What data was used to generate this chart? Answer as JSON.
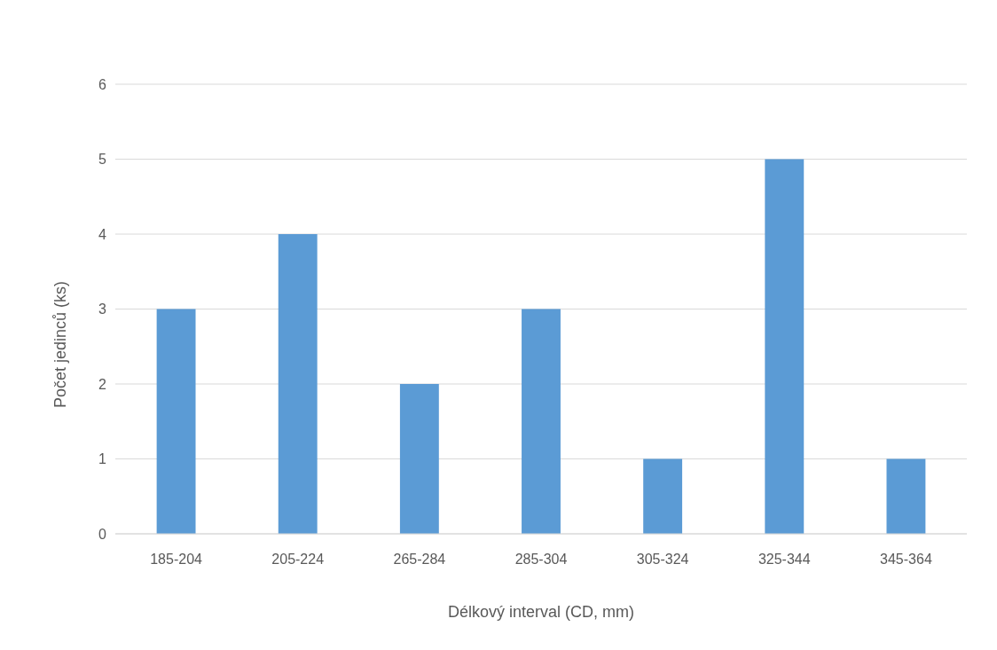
{
  "chart_data": {
    "type": "bar",
    "xlabel": "Délkový interval (CD, mm)",
    "ylabel": "Počet jedinců (ks)",
    "categories": [
      "185-204",
      "205-224",
      "265-284",
      "285-304",
      "305-324",
      "325-344",
      "345-364"
    ],
    "values": [
      3,
      4,
      2,
      3,
      1,
      5,
      1
    ],
    "color": "#5b9bd5",
    "ylim": [
      0,
      6
    ],
    "yticks": [
      0,
      1,
      2,
      3,
      4,
      5,
      6
    ],
    "grid": "y"
  }
}
